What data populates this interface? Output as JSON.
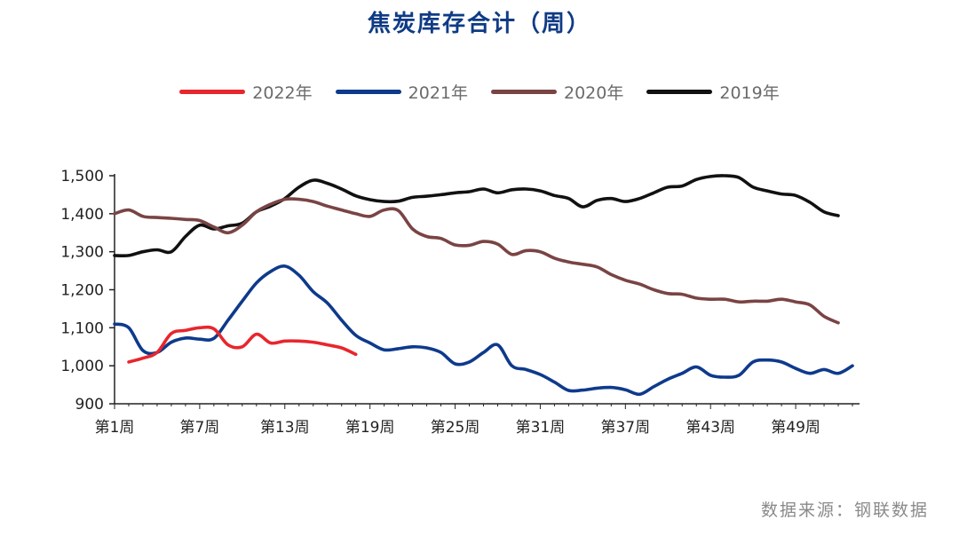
{
  "chart_data": {
    "type": "line",
    "title": "焦炭库存合计（周）",
    "xlabel": "",
    "ylabel": "",
    "ylim": [
      900,
      1500
    ],
    "y_ticks": [
      {
        "value": 900,
        "label": "900"
      },
      {
        "value": 1000,
        "label": "1,000"
      },
      {
        "value": 1100,
        "label": "1,100"
      },
      {
        "value": 1200,
        "label": "1,200"
      },
      {
        "value": 1300,
        "label": "1,300"
      },
      {
        "value": 1400,
        "label": "1,400"
      },
      {
        "value": 1500,
        "label": "1,500"
      }
    ],
    "x_ticks": [
      {
        "week": 1,
        "label": "第1周"
      },
      {
        "week": 7,
        "label": "第7周"
      },
      {
        "week": 13,
        "label": "第13周"
      },
      {
        "week": 19,
        "label": "第19周"
      },
      {
        "week": 25,
        "label": "第25周"
      },
      {
        "week": 31,
        "label": "第31周"
      },
      {
        "week": 37,
        "label": "第37周"
      },
      {
        "week": 43,
        "label": "第43周"
      },
      {
        "week": 49,
        "label": "第49周"
      }
    ],
    "x_range": [
      1,
      53.5
    ],
    "legend_position": "top-center",
    "grid": false,
    "series": [
      {
        "name": "2022年",
        "color": "#e8262d",
        "x": [
          2,
          3,
          4,
          5,
          6,
          7,
          8,
          9,
          10,
          11,
          12,
          13,
          14,
          15,
          16,
          17,
          18
        ],
        "values": [
          1010,
          1020,
          1035,
          1085,
          1093,
          1100,
          1097,
          1055,
          1050,
          1083,
          1060,
          1065,
          1065,
          1062,
          1055,
          1047,
          1030
        ]
      },
      {
        "name": "2021年",
        "color": "#0e3a8c",
        "x": [
          1,
          2,
          3,
          4,
          5,
          6,
          7,
          8,
          9,
          10,
          11,
          12,
          13,
          14,
          15,
          16,
          17,
          18,
          19,
          20,
          21,
          22,
          23,
          24,
          25,
          26,
          27,
          28,
          29,
          30,
          31,
          32,
          33,
          34,
          35,
          36,
          37,
          38,
          39,
          40,
          41,
          42,
          43,
          44,
          45,
          46,
          47,
          48,
          49,
          50,
          51,
          52,
          53
        ],
        "values": [
          1110,
          1100,
          1040,
          1035,
          1062,
          1073,
          1070,
          1072,
          1120,
          1170,
          1218,
          1248,
          1262,
          1238,
          1195,
          1165,
          1120,
          1080,
          1060,
          1042,
          1045,
          1050,
          1047,
          1035,
          1005,
          1010,
          1035,
          1055,
          1000,
          990,
          977,
          957,
          935,
          936,
          941,
          943,
          937,
          925,
          945,
          965,
          980,
          997,
          975,
          970,
          975,
          1010,
          1015,
          1010,
          993,
          980,
          990,
          980,
          1000
        ]
      },
      {
        "name": "2020年",
        "color": "#7a4444",
        "x": [
          1,
          2,
          3,
          4,
          5,
          6,
          7,
          8,
          9,
          10,
          11,
          12,
          13,
          14,
          15,
          16,
          17,
          18,
          19,
          20,
          21,
          22,
          23,
          24,
          25,
          26,
          27,
          28,
          29,
          30,
          31,
          32,
          33,
          34,
          35,
          36,
          37,
          38,
          39,
          40,
          41,
          42,
          43,
          44,
          45,
          46,
          47,
          48,
          49,
          50,
          51,
          52
        ],
        "values": [
          1400,
          1410,
          1393,
          1390,
          1388,
          1385,
          1382,
          1365,
          1350,
          1370,
          1405,
          1425,
          1438,
          1438,
          1432,
          1420,
          1410,
          1400,
          1393,
          1410,
          1408,
          1360,
          1340,
          1335,
          1318,
          1317,
          1327,
          1320,
          1293,
          1303,
          1300,
          1283,
          1273,
          1267,
          1260,
          1240,
          1225,
          1215,
          1200,
          1190,
          1188,
          1178,
          1175,
          1175,
          1168,
          1170,
          1170,
          1175,
          1168,
          1160,
          1130,
          1113
        ]
      },
      {
        "name": "2019年",
        "color": "#111111",
        "x": [
          1,
          2,
          3,
          4,
          5,
          6,
          7,
          8,
          9,
          10,
          11,
          12,
          13,
          14,
          15,
          16,
          17,
          18,
          19,
          20,
          21,
          22,
          23,
          24,
          25,
          26,
          27,
          28,
          29,
          30,
          31,
          32,
          33,
          34,
          35,
          36,
          37,
          38,
          39,
          40,
          41,
          42,
          43,
          44,
          45,
          46,
          47,
          48,
          49,
          50,
          51,
          52
        ],
        "values": [
          1290,
          1290,
          1300,
          1305,
          1300,
          1340,
          1370,
          1360,
          1368,
          1375,
          1405,
          1420,
          1440,
          1470,
          1488,
          1480,
          1465,
          1447,
          1437,
          1432,
          1433,
          1443,
          1446,
          1450,
          1455,
          1458,
          1465,
          1455,
          1463,
          1465,
          1460,
          1448,
          1440,
          1418,
          1435,
          1440,
          1432,
          1440,
          1455,
          1470,
          1473,
          1490,
          1498,
          1500,
          1495,
          1470,
          1460,
          1452,
          1448,
          1430,
          1405,
          1395
        ]
      }
    ]
  },
  "source": "数据来源：钢联数据"
}
